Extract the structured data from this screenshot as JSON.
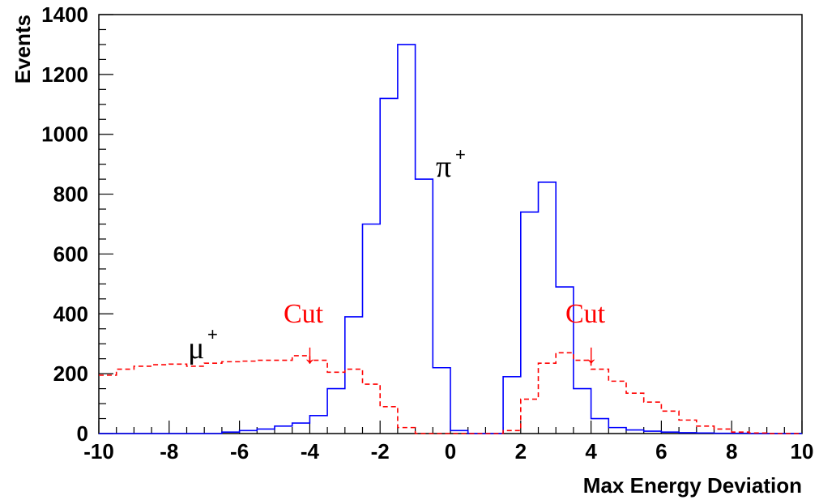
{
  "chart_data": {
    "type": "histogram",
    "xlabel": "Max Energy Deviation",
    "ylabel": "Events",
    "xlim": [
      -10,
      10
    ],
    "ylim": [
      0,
      1400
    ],
    "x_ticks": [
      "-10",
      "-8",
      "-6",
      "-4",
      "-2",
      "0",
      "2",
      "4",
      "6",
      "8",
      "10"
    ],
    "y_ticks": [
      "0",
      "200",
      "400",
      "600",
      "800",
      "1000",
      "1200",
      "1400"
    ],
    "bin_edges": [
      -10,
      -9.5,
      -9,
      -8.5,
      -8,
      -7.5,
      -7,
      -6.5,
      -6,
      -5.5,
      -5,
      -4.5,
      -4,
      -3.5,
      -3,
      -2.5,
      -2,
      -1.5,
      -1,
      -0.5,
      0,
      0.5,
      1,
      1.5,
      2,
      2.5,
      3,
      3.5,
      4,
      4.5,
      5,
      5.5,
      6,
      6.5,
      7,
      7.5,
      8,
      8.5,
      9,
      9.5,
      10
    ],
    "series": [
      {
        "name": "π+",
        "color": "#0000ff",
        "linestyle": "solid",
        "values": [
          0,
          0,
          0,
          0,
          0,
          0,
          0,
          5,
          10,
          15,
          25,
          35,
          60,
          150,
          390,
          700,
          1120,
          1300,
          850,
          220,
          10,
          0,
          0,
          190,
          740,
          840,
          490,
          150,
          50,
          20,
          12,
          8,
          5,
          3,
          2,
          1,
          1,
          0,
          0,
          0
        ]
      },
      {
        "name": "μ+",
        "color": "#ff0000",
        "linestyle": "dashed",
        "values": [
          195,
          215,
          225,
          230,
          232,
          225,
          235,
          240,
          242,
          245,
          245,
          260,
          245,
          205,
          215,
          165,
          90,
          20,
          0,
          0,
          0,
          0,
          0,
          10,
          115,
          235,
          270,
          245,
          215,
          175,
          135,
          105,
          75,
          45,
          25,
          15,
          5,
          2,
          0,
          0
        ]
      }
    ],
    "annotations": {
      "pi_label": "π",
      "pi_sup": "+",
      "mu_label": "μ",
      "mu_sup": "+",
      "cut_left": "Cut",
      "cut_right": "Cut",
      "cut_arrow": "↓"
    },
    "cuts": [
      -4,
      4
    ],
    "grid": false,
    "legend": "none"
  }
}
